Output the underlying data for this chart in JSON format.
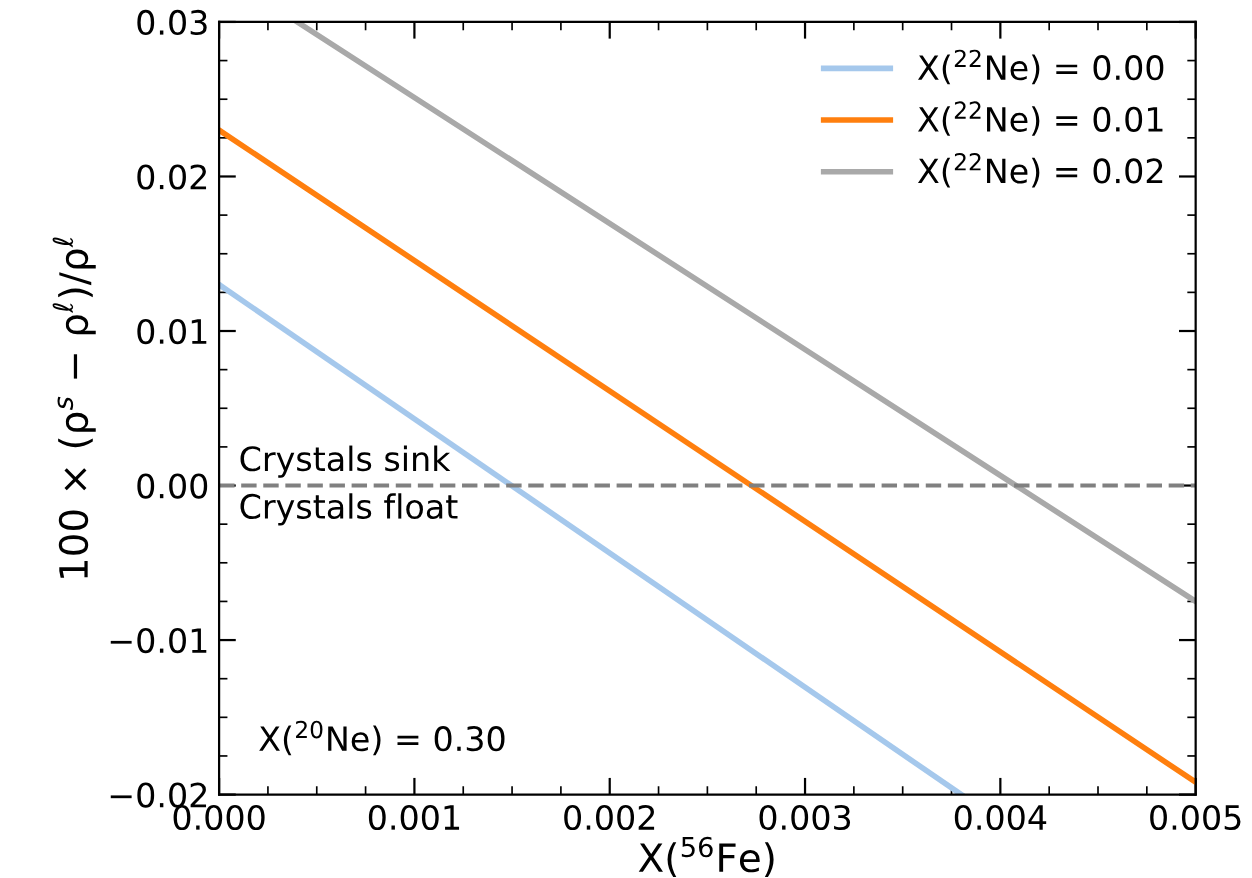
{
  "chart_data": {
    "type": "line",
    "xlabel": "X($^{56}$Fe)",
    "ylabel": "100 × (ρ$^{s}$ − ρ$^{ℓ}$)/ρ$^{ℓ}$",
    "series": [
      {
        "name": "X($^{22}$Ne) = 0.00",
        "color": "#a5c8ec",
        "x": [
          0,
          0.0038
        ],
        "values": [
          0.013,
          -0.02
        ]
      },
      {
        "name": "X($^{22}$Ne) = 0.01",
        "color": "#ff7f0e",
        "x": [
          0,
          0.005
        ],
        "values": [
          0.023,
          -0.0192
        ]
      },
      {
        "name": "X($^{22}$Ne) = 0.02",
        "color": "#a9a9a9",
        "x": [
          0.0004,
          0.005
        ],
        "values": [
          0.03,
          -0.0075
        ]
      }
    ],
    "xlim": [
      0,
      0.005
    ],
    "ylim": [
      -0.02,
      0.03
    ],
    "xticks": [
      {
        "value": 0,
        "label": "0.000"
      },
      0.001,
      0.002,
      0.003,
      0.004,
      0.005
    ],
    "yticks": [
      {
        "value": -0.02,
        "label": "−0.02"
      },
      {
        "value": -0.01,
        "label": "−0.01"
      },
      {
        "value": 0,
        "label": "0.00"
      },
      0.01,
      0.02,
      0.03
    ],
    "ref_lines": [
      {
        "axis": "y",
        "value": 0,
        "color": "#808080",
        "line_style": "dashed"
      }
    ],
    "annotations": [
      "Crystals sink",
      "Crystals float",
      "X($^{20}$Ne) = 0.30"
    ],
    "legend": "top right",
    "grid": false,
    "marker": "none",
    "line_style": "solid"
  }
}
